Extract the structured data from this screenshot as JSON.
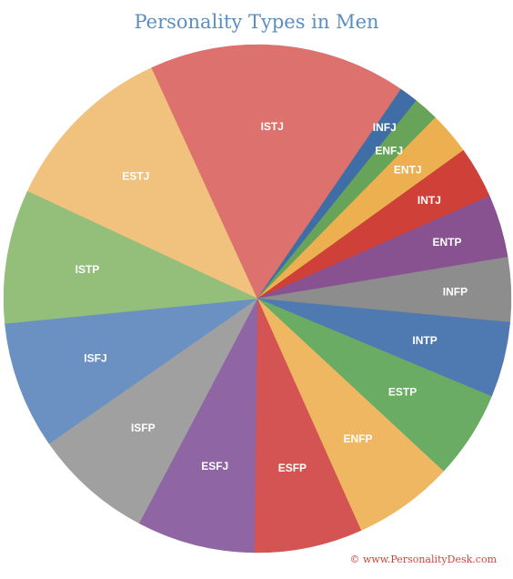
{
  "chart_data": {
    "type": "pie",
    "title": "Personality Types in Men",
    "slices": [
      {
        "label": "ESTJ",
        "value": 11.2,
        "color": "#f1c27d"
      },
      {
        "label": "ISTJ",
        "value": 16.4,
        "color": "#dc716e"
      },
      {
        "label": "INFJ",
        "value": 1.2,
        "color": "#3f6ea6"
      },
      {
        "label": "ENFJ",
        "value": 1.6,
        "color": "#68a35a"
      },
      {
        "label": "ENTJ",
        "value": 2.7,
        "color": "#ecb050"
      },
      {
        "label": "INTJ",
        "value": 3.3,
        "color": "#cf4038"
      },
      {
        "label": "ENTP",
        "value": 4.0,
        "color": "#87528f"
      },
      {
        "label": "INFP",
        "value": 4.1,
        "color": "#8d8d8d"
      },
      {
        "label": "INTP",
        "value": 4.8,
        "color": "#4f79b1"
      },
      {
        "label": "ESTP",
        "value": 5.6,
        "color": "#6aac63"
      },
      {
        "label": "ENFP",
        "value": 6.4,
        "color": "#f0b762"
      },
      {
        "label": "ESFP",
        "value": 6.9,
        "color": "#d35452"
      },
      {
        "label": "ESFJ",
        "value": 7.5,
        "color": "#8f65a4"
      },
      {
        "label": "ISFP",
        "value": 7.6,
        "color": "#a0a0a0"
      },
      {
        "label": "ISFJ",
        "value": 8.1,
        "color": "#6b91c2"
      },
      {
        "label": "ISTP",
        "value": 8.5,
        "color": "#93bf7b"
      }
    ]
  },
  "credit": "© www.PersonalityDesk.com"
}
